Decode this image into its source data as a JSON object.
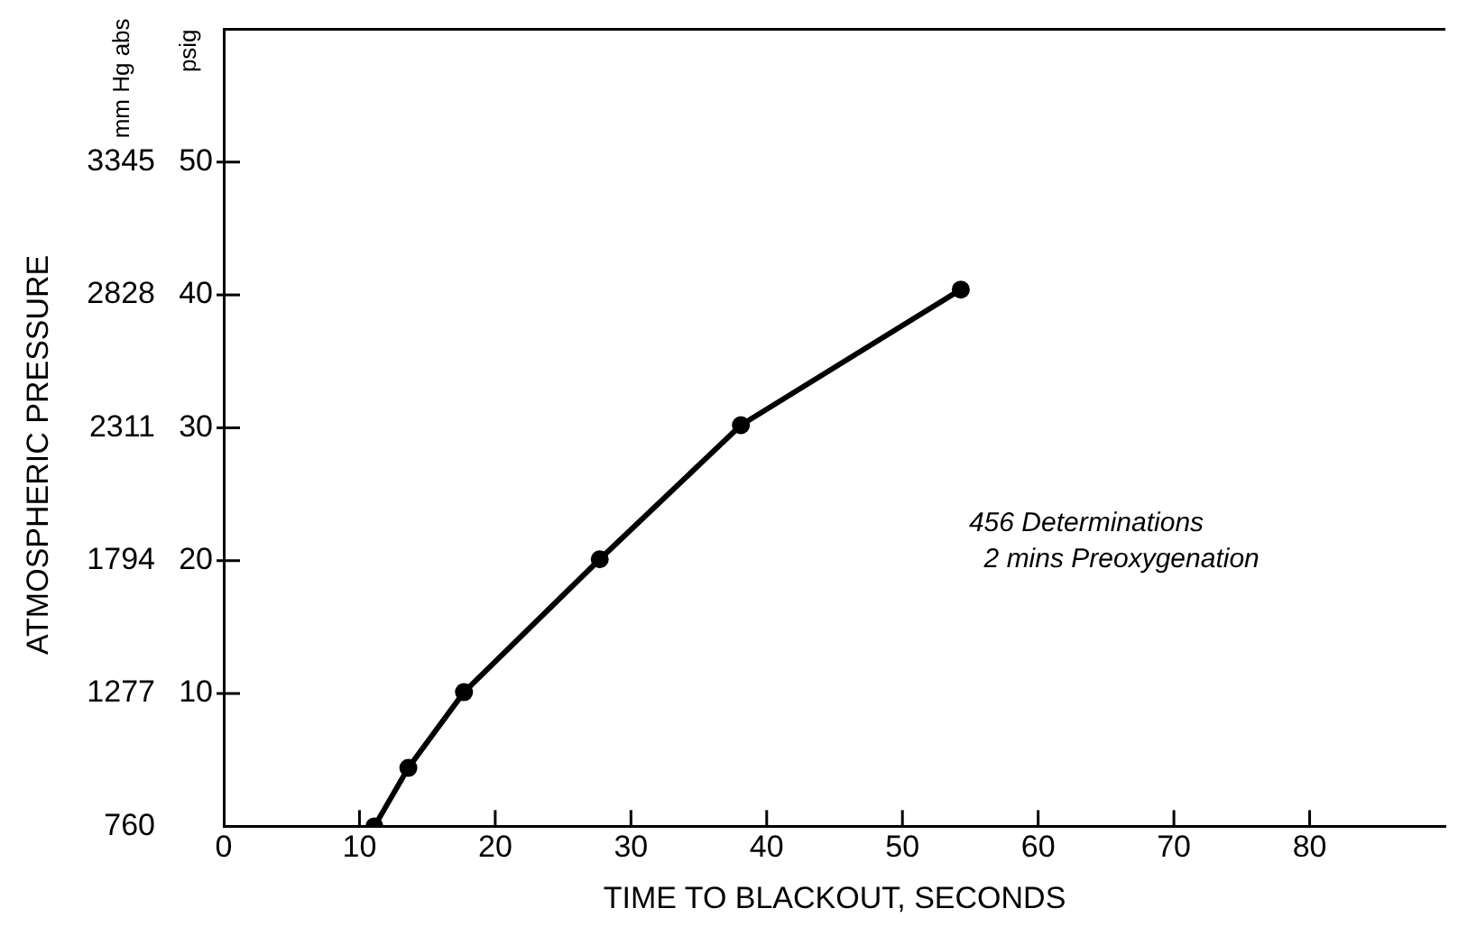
{
  "chart_data": {
    "type": "line",
    "xlabel": "TIME TO BLACKOUT, SECONDS",
    "ylabel": "psig",
    "y2label": "mm Hg abs",
    "annotations": [
      "ATMOSPHERIC PRESSURE",
      "456 Determinations\n  2 mins Preoxygenation"
    ],
    "x": [
      11.1,
      13.6,
      17.7,
      27.7,
      38.1,
      54.3
    ],
    "values": [
      0,
      4.4,
      10.1,
      20.1,
      30.2,
      40.4
    ],
    "color": "#000000",
    "marker": "circle",
    "line_style": "solid",
    "xlim": [
      0,
      90
    ],
    "xticks": [
      0,
      10,
      20,
      30,
      40,
      50,
      60,
      70,
      80
    ],
    "ylim": [
      0,
      60
    ],
    "yticks": [
      {
        "value": 0,
        "label": null
      },
      10,
      20,
      30,
      40,
      50
    ],
    "y2lim": [
      760,
      3862
    ],
    "y2ticks": [
      760,
      1277,
      1794,
      2311,
      2828,
      3345
    ]
  }
}
